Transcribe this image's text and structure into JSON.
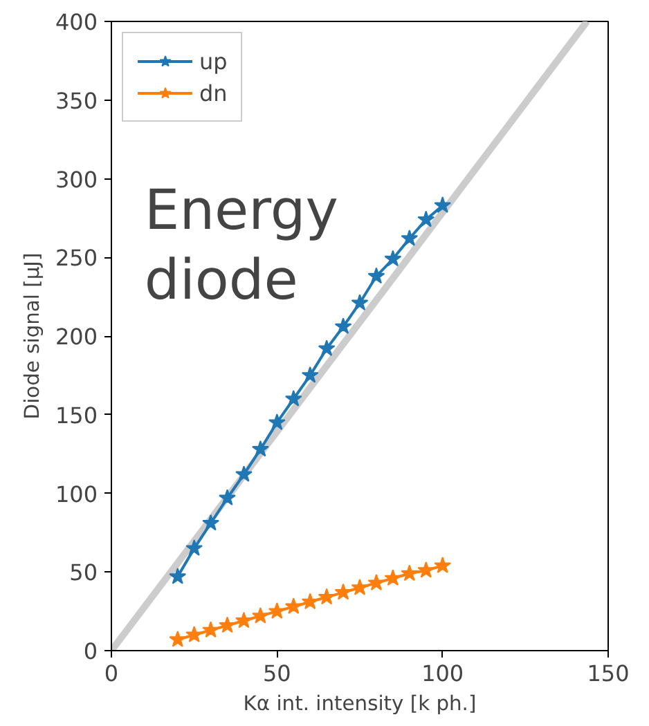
{
  "chart_data": {
    "type": "line",
    "xlabel": "Kα int. intensity [k ph.]",
    "ylabel": "Diode signal [μJ]",
    "annotations": [
      "Energy\ndiode"
    ],
    "x": [
      20,
      25,
      30,
      35,
      40,
      45,
      50,
      55,
      60,
      65,
      70,
      75,
      80,
      85,
      90,
      95,
      100
    ],
    "series": [
      {
        "x": [
          0,
          143.6
        ],
        "values": [
          0,
          400
        ],
        "color": "#cccccc",
        "marker": "none"
      },
      {
        "name": "up",
        "color": "#1f77b4",
        "values": [
          47,
          65,
          81,
          97,
          112,
          128,
          145,
          160,
          175,
          192,
          206,
          221,
          238,
          249,
          262,
          274,
          283
        ]
      },
      {
        "name": "dn",
        "color": "#ff7f0e",
        "values": [
          7,
          10,
          13,
          16,
          19,
          22,
          25,
          28,
          31,
          34,
          37,
          40,
          43,
          46,
          49,
          51,
          54
        ]
      }
    ],
    "xlim": [
      0,
      150
    ],
    "ylim": [
      0,
      400
    ],
    "xticks": [
      0,
      50,
      100,
      150
    ],
    "yticks": [
      0,
      50,
      100,
      150,
      200,
      250,
      300,
      350,
      400
    ],
    "marker": "star",
    "legend": "top left",
    "grid": false
  }
}
